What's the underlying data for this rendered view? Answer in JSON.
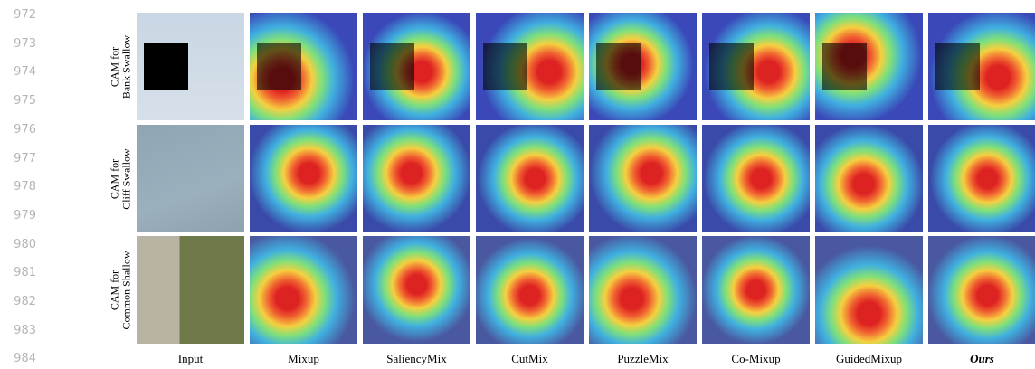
{
  "line_numbers": [
    "972",
    "973",
    "974",
    "975",
    "976",
    "977",
    "978",
    "979",
    "980",
    "981",
    "982",
    "983",
    "984"
  ],
  "rows": [
    {
      "line1": "CAM for",
      "line2": "Bank Swallow"
    },
    {
      "line1": "CAM for",
      "line2": "Cliff Swallow"
    },
    {
      "line1": "CAM for",
      "line2": "Common Shallow"
    }
  ],
  "columns": [
    "Input",
    "Mixup",
    "SaliencyMix",
    "CutMix",
    "PuzzleMix",
    "Co-Mixup",
    "GuidedMixup",
    "Ours"
  ]
}
